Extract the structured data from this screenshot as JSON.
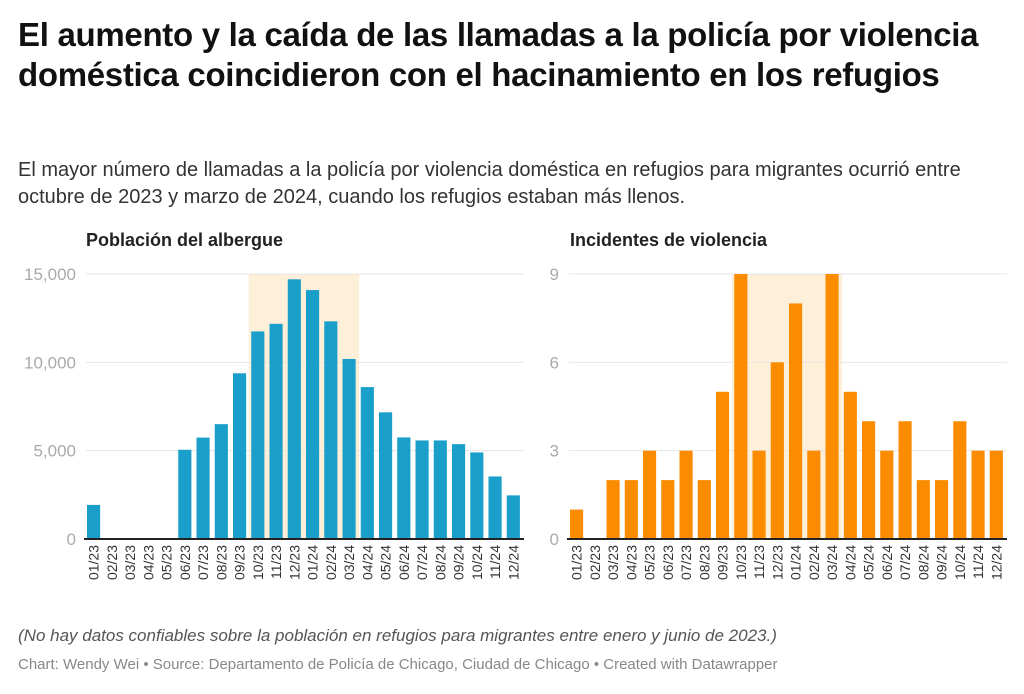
{
  "header": {
    "title": "El aumento y la caída de las llamadas a la policía por violencia doméstica coincidieron con el hacinamiento en los refugios",
    "subtitle": "El mayor número de llamadas a la policía por violencia doméstica en refugios para migrantes ocurrió entre octubre de 2023 y marzo de 2024, cuando los refugios estaban más llenos."
  },
  "footer": {
    "note": "(No hay datos confiables sobre la población en refugios para migrantes entre enero y junio de 2023.)",
    "credit": "Chart: Wendy Wei • Source: Departamento de Policía de Chicago, Ciudad de Chicago • Created with Datawrapper"
  },
  "colors": {
    "population_bar": "#1a9fcb",
    "incidents_bar": "#fb8c00",
    "highlight": "#feefd9",
    "grid": "#e6e6e6",
    "baseline": "#222222"
  },
  "chart_data": [
    {
      "type": "bar",
      "title": "Población del albergue",
      "xlabel": "",
      "ylabel": "",
      "categories": [
        "01/23",
        "02/23",
        "03/23",
        "04/23",
        "05/23",
        "06/23",
        "07/23",
        "08/23",
        "09/23",
        "10/23",
        "11/23",
        "12/23",
        "01/24",
        "02/24",
        "03/24",
        "04/24",
        "05/24",
        "06/24",
        "07/24",
        "08/24",
        "09/24",
        "10/24",
        "11/24",
        "12/24"
      ],
      "values": [
        1930,
        0,
        0,
        0,
        0,
        5050,
        5740,
        6500,
        9380,
        11750,
        12180,
        14700,
        14090,
        12320,
        10190,
        8600,
        7170,
        5750,
        5580,
        5580,
        5370,
        4900,
        3540,
        2470
      ],
      "ylim": [
        0,
        15000
      ],
      "yticks": [
        0,
        5000,
        10000,
        15000
      ],
      "ytick_labels": [
        "0",
        "5,000",
        "10,000",
        "15,000"
      ],
      "grid": true,
      "highlight_range": [
        "10/23",
        "03/24"
      ]
    },
    {
      "type": "bar",
      "title": "Incidentes de violencia",
      "xlabel": "",
      "ylabel": "",
      "categories": [
        "01/23",
        "02/23",
        "03/23",
        "04/23",
        "05/23",
        "06/23",
        "07/23",
        "08/23",
        "09/23",
        "10/23",
        "11/23",
        "12/23",
        "01/24",
        "02/24",
        "03/24",
        "04/24",
        "05/24",
        "06/24",
        "07/24",
        "08/24",
        "09/24",
        "10/24",
        "11/24",
        "12/24"
      ],
      "values": [
        1,
        0,
        2,
        2,
        3,
        2,
        3,
        2,
        5,
        9,
        3,
        6,
        8,
        3,
        9,
        5,
        4,
        3,
        4,
        2,
        2,
        4,
        3,
        3
      ],
      "ylim": [
        0,
        9
      ],
      "yticks": [
        0,
        3,
        6,
        9
      ],
      "ytick_labels": [
        "0",
        "3",
        "6",
        "9"
      ],
      "grid": true,
      "highlight_range": [
        "10/23",
        "03/24"
      ]
    }
  ]
}
